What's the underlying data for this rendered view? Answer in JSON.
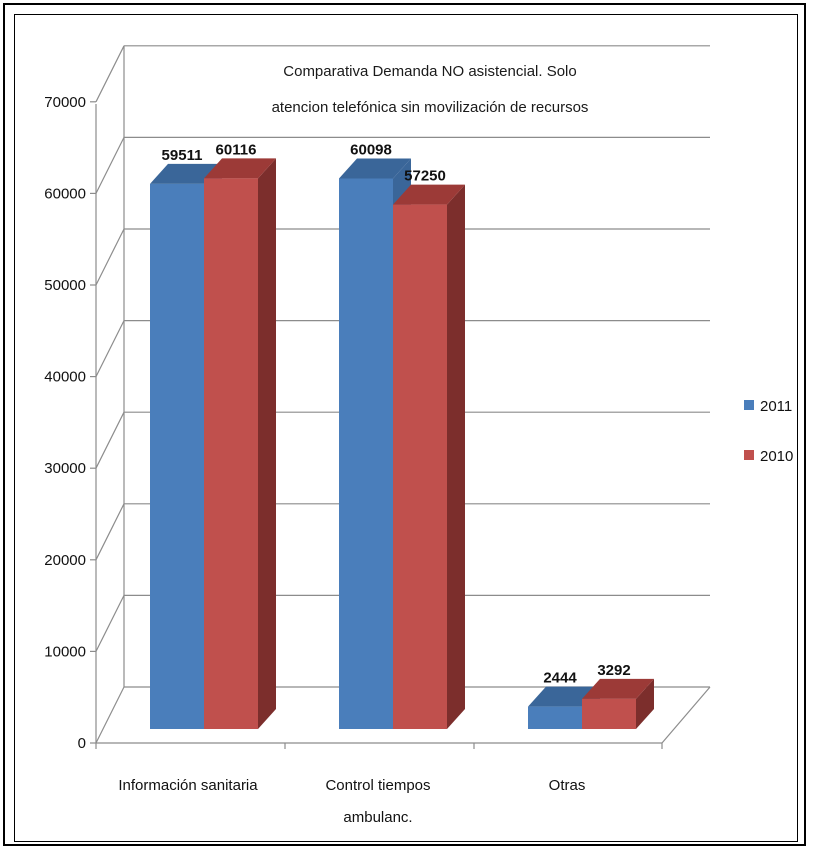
{
  "chart_data": {
    "type": "bar",
    "style": "3d-clustered-column",
    "title_lines": [
      "Comparativa Demanda NO asistencial. Solo",
      "atencion telefónica sin movilización de recursos"
    ],
    "categories": [
      "Información sanitaria",
      "Control tiempos ambulanc.",
      "Otras"
    ],
    "category_label_lines": [
      [
        "Información sanitaria"
      ],
      [
        "Control tiempos",
        "ambulanc."
      ],
      [
        "Otras"
      ]
    ],
    "series": [
      {
        "name": "2011",
        "values": [
          59511,
          60098,
          2444
        ],
        "color": "#4a7ebb",
        "top_color": "#3a6699"
      },
      {
        "name": "2010",
        "values": [
          60116,
          57250,
          3292
        ],
        "color": "#c0504d",
        "top_color": "#9c3a37",
        "side_color": "#7c2e2c"
      }
    ],
    "ylim": [
      0,
      70000
    ],
    "ytick_step": 10000,
    "yticks": [
      "0",
      "10000",
      "20000",
      "30000",
      "40000",
      "50000",
      "60000",
      "70000"
    ],
    "grid": true,
    "legend_position": "right"
  }
}
